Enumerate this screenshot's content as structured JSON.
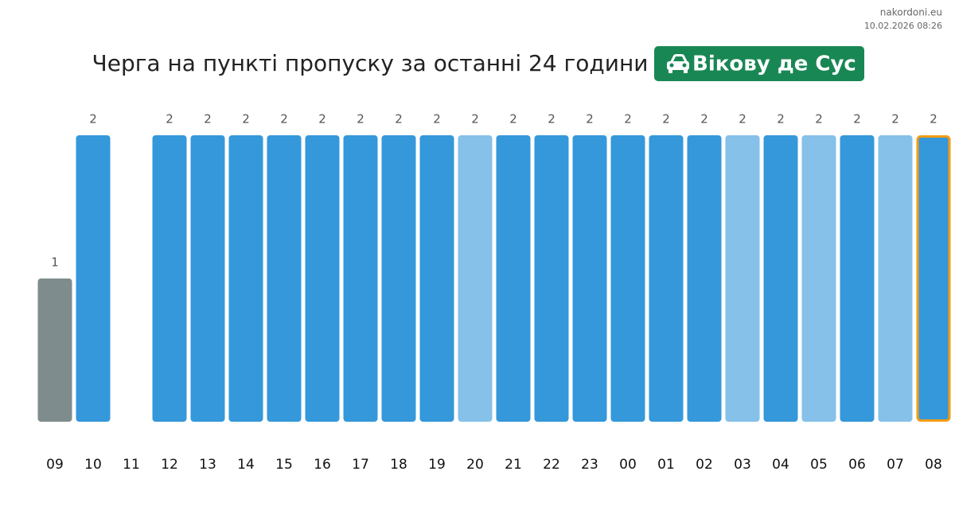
{
  "site": "nakordoni.eu",
  "timestamp": "10.02.2026 08:26",
  "chart_data": {
    "type": "bar",
    "title": "Черга на пункті пропуску за останні 24 години",
    "badge": "Вікову де Сус",
    "categories": [
      "09",
      "10",
      "11",
      "12",
      "13",
      "14",
      "15",
      "16",
      "17",
      "18",
      "19",
      "20",
      "21",
      "22",
      "23",
      "00",
      "01",
      "02",
      "03",
      "04",
      "05",
      "06",
      "07",
      "08"
    ],
    "values": [
      1,
      2,
      null,
      2,
      2,
      2,
      2,
      2,
      2,
      2,
      2,
      2,
      2,
      2,
      2,
      2,
      2,
      2,
      2,
      2,
      2,
      2,
      2,
      2
    ],
    "colors": [
      "#7f8c8d",
      "#3498db",
      "#3498db",
      "#3498db",
      "#3498db",
      "#3498db",
      "#3498db",
      "#3498db",
      "#3498db",
      "#3498db",
      "#3498db",
      "#85c1e9",
      "#3498db",
      "#3498db",
      "#3498db",
      "#3498db",
      "#3498db",
      "#3498db",
      "#85c1e9",
      "#3498db",
      "#85c1e9",
      "#3498db",
      "#85c1e9",
      "#3498db"
    ],
    "highlight_category": "08",
    "highlight_color": "#f39c12",
    "ylim": [
      0,
      2
    ]
  }
}
